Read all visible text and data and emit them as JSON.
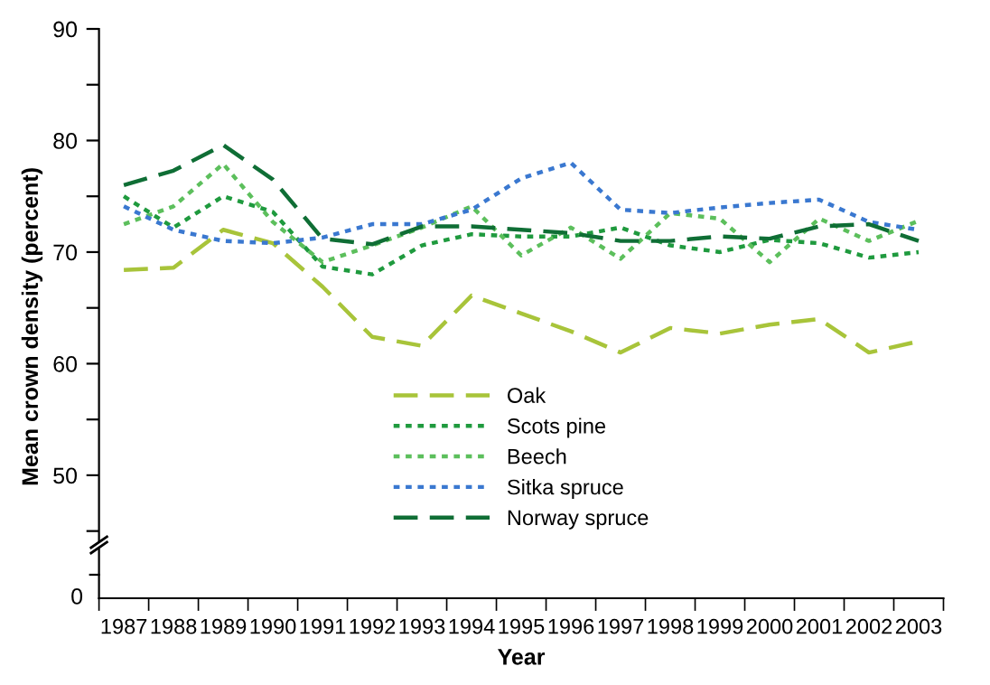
{
  "chart_data": {
    "type": "line",
    "xlabel": "Year",
    "ylabel": "Mean crown density (percent)",
    "categories": [
      "1987",
      "1988",
      "1989",
      "1990",
      "1991",
      "1992",
      "1993",
      "1994",
      "1995",
      "1996",
      "1997",
      "1998",
      "1999",
      "2000",
      "2001",
      "2002",
      "2003"
    ],
    "series": [
      {
        "name": "Oak",
        "color": "#a8c43a",
        "line_style": "dashed",
        "values": [
          68.4,
          68.6,
          72.0,
          70.8,
          66.9,
          62.4,
          61.6,
          66.1,
          64.5,
          62.9,
          61.0,
          63.2,
          62.7,
          63.5,
          64.0,
          61.0,
          62.0
        ]
      },
      {
        "name": "Scots pine",
        "color": "#1f9a3e",
        "line_style": "dotted",
        "values": [
          75.0,
          72.2,
          75.0,
          73.6,
          68.7,
          68.0,
          70.6,
          71.6,
          71.4,
          71.4,
          72.2,
          70.6,
          70.0,
          71.1,
          70.8,
          69.5,
          70.0
        ]
      },
      {
        "name": "Beech",
        "color": "#5cbf5c",
        "line_style": "dotted",
        "values": [
          72.5,
          74.1,
          77.9,
          72.7,
          69.1,
          70.6,
          72.2,
          74.1,
          69.7,
          72.2,
          69.4,
          73.5,
          73.0,
          69.1,
          73.0,
          71.0,
          72.8
        ]
      },
      {
        "name": "Sitka spruce",
        "color": "#3a78d0",
        "line_style": "dotted",
        "values": [
          74.1,
          72.0,
          71.0,
          70.8,
          71.3,
          72.5,
          72.5,
          73.8,
          76.6,
          78.0,
          73.8,
          73.5,
          74.0,
          74.4,
          74.7,
          72.7,
          72.0
        ]
      },
      {
        "name": "Norway spruce",
        "color": "#0f6e35",
        "line_style": "dashed",
        "values": [
          76.0,
          77.3,
          79.6,
          76.5,
          71.2,
          70.7,
          72.3,
          72.3,
          72.0,
          71.7,
          71.0,
          71.0,
          71.4,
          71.2,
          72.3,
          72.5,
          71.0
        ]
      }
    ],
    "ylim": [
      44,
      90
    ],
    "yticks": [
      {
        "value": 45,
        "label": null
      },
      50,
      {
        "value": 55,
        "label": null
      },
      60,
      {
        "value": 65,
        "label": null
      },
      70,
      {
        "value": 75,
        "label": null
      },
      80,
      {
        "value": 85,
        "label": null
      },
      90
    ],
    "annotations": [
      "0"
    ],
    "grid": false,
    "legend": "bottom",
    "marker": "none"
  }
}
